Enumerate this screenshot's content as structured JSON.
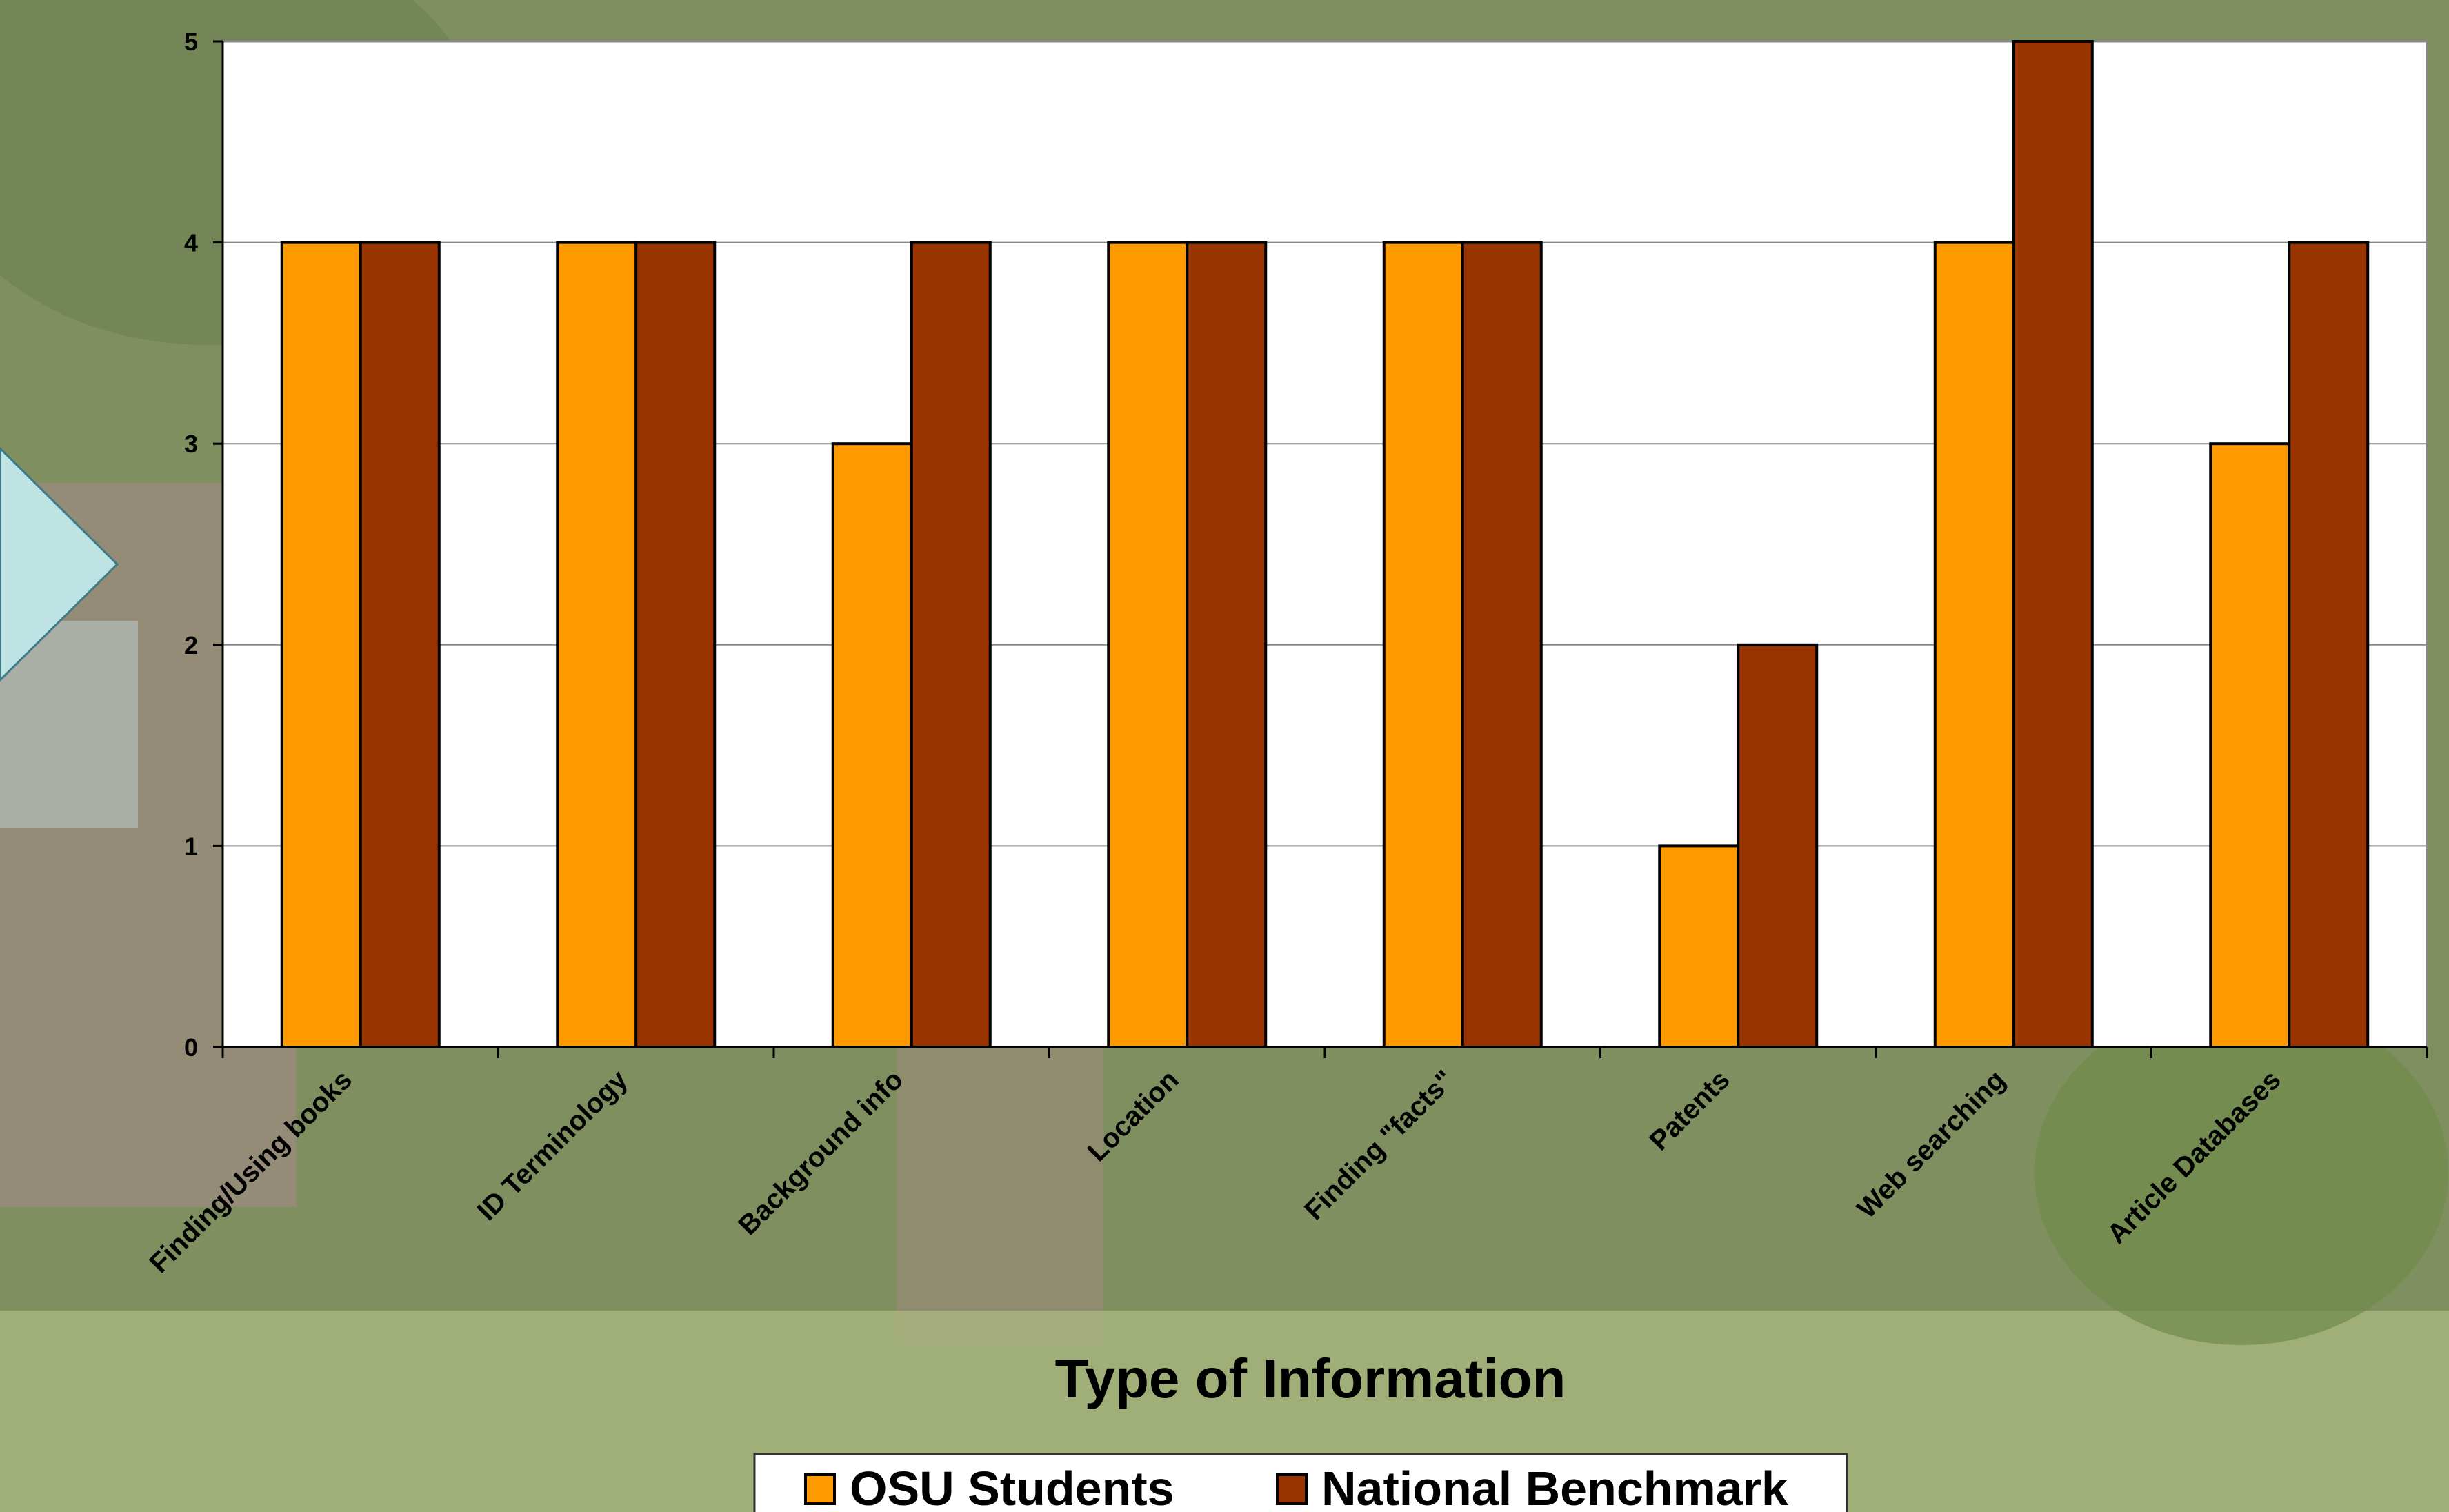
{
  "chart_data": {
    "type": "bar",
    "xlabel": "Type of Information",
    "ylabel": "",
    "ylim": [
      0,
      5
    ],
    "yticks": [
      "0",
      "1",
      "2",
      "3",
      "4",
      "5"
    ],
    "grid": true,
    "legend_position": "bottom",
    "categories": [
      "Finding/Using books",
      "ID Terminology",
      "Background info",
      "Location",
      "Finding \"facts\"",
      "Patents",
      "Web searching",
      "Article Databases"
    ],
    "series": [
      {
        "name": "OSU Students",
        "color": "#FF9900",
        "values": [
          4,
          4,
          3,
          4,
          4,
          1,
          4,
          3
        ]
      },
      {
        "name": "National Benchmark",
        "color": "#993300",
        "values": [
          4,
          4,
          4,
          4,
          4,
          2,
          5,
          4
        ]
      }
    ]
  }
}
